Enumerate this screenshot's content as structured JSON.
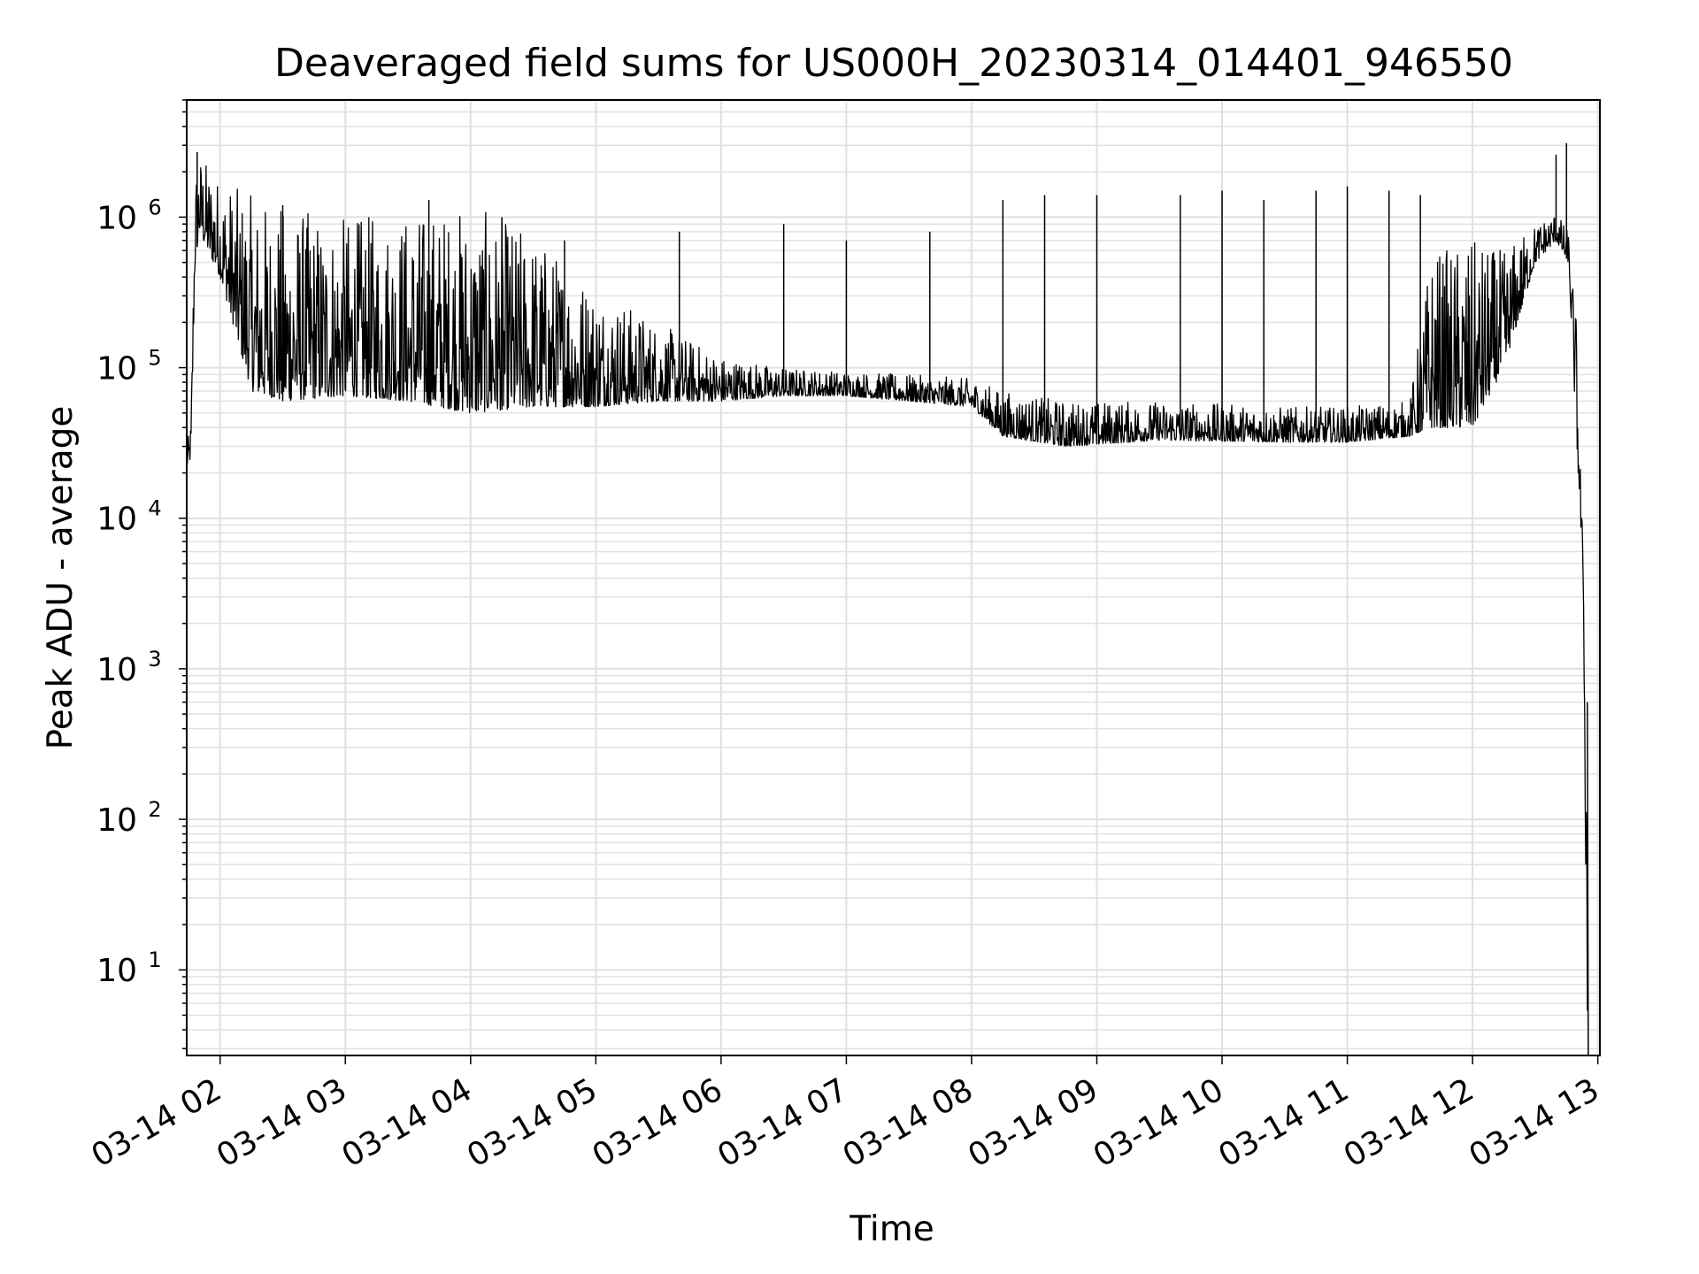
{
  "chart_data": {
    "type": "line",
    "title": "Deaveraged field sums for US000H_20230314_014401_946550",
    "xlabel": "Time",
    "ylabel": "Peak ADU - average",
    "y_scale": "log",
    "ylim": [
      2.7,
      6000000
    ],
    "xlim": [
      "2023-03-14 01:44",
      "2023-03-14 13:01"
    ],
    "grid": "on (major and minor, light gray)",
    "x_ticks": [
      "03-14 02",
      "03-14 03",
      "03-14 04",
      "03-14 05",
      "03-14 06",
      "03-14 07",
      "03-14 08",
      "03-14 09",
      "03-14 10",
      "03-14 11",
      "03-14 12",
      "03-14 13"
    ],
    "y_ticks": [
      {
        "base": "10",
        "exp": "1",
        "value": 10
      },
      {
        "base": "10",
        "exp": "2",
        "value": 100
      },
      {
        "base": "10",
        "exp": "3",
        "value": 1000
      },
      {
        "base": "10",
        "exp": "4",
        "value": 10000
      },
      {
        "base": "10",
        "exp": "5",
        "value": 100000
      },
      {
        "base": "10",
        "exp": "6",
        "value": 1000000
      }
    ],
    "line_color": "#000000",
    "grid_color": "#e0e0e0",
    "series": [
      {
        "envelope": [
          {
            "t": "01:44",
            "low": 22000,
            "high": 30000
          },
          {
            "t": "01:46",
            "low": 25000,
            "high": 45000
          },
          {
            "t": "01:48",
            "low": 500000,
            "high": 2200000
          },
          {
            "t": "01:50",
            "low": 800000,
            "high": 2700000
          },
          {
            "t": "02:00",
            "low": 400000,
            "high": 1800000
          },
          {
            "t": "02:15",
            "low": 70000,
            "high": 1400000
          },
          {
            "t": "02:30",
            "low": 60000,
            "high": 1200000
          },
          {
            "t": "03:00",
            "low": 65000,
            "high": 1000000
          },
          {
            "t": "03:30",
            "low": 60000,
            "high": 1100000
          },
          {
            "t": "04:00",
            "low": 50000,
            "high": 1200000
          },
          {
            "t": "04:30",
            "low": 55000,
            "high": 800000
          },
          {
            "t": "05:00",
            "low": 55000,
            "high": 350000
          },
          {
            "t": "05:30",
            "low": 60000,
            "high": 200000
          },
          {
            "t": "06:00",
            "low": 60000,
            "high": 120000
          },
          {
            "t": "06:30",
            "low": 65000,
            "high": 100000
          },
          {
            "t": "07:00",
            "low": 65000,
            "high": 95000
          },
          {
            "t": "07:30",
            "low": 60000,
            "high": 90000
          },
          {
            "t": "08:00",
            "low": 55000,
            "high": 85000
          },
          {
            "t": "08:15",
            "low": 35000,
            "high": 70000
          },
          {
            "t": "08:45",
            "low": 30000,
            "high": 60000
          },
          {
            "t": "09:30",
            "low": 33000,
            "high": 60000
          },
          {
            "t": "10:30",
            "low": 32000,
            "high": 55000
          },
          {
            "t": "11:00",
            "low": 32000,
            "high": 55000
          },
          {
            "t": "11:30",
            "low": 35000,
            "high": 60000
          },
          {
            "t": "11:40",
            "low": 40000,
            "high": 600000
          },
          {
            "t": "12:00",
            "low": 40000,
            "high": 700000
          },
          {
            "t": "12:15",
            "low": 100000,
            "high": 600000
          },
          {
            "t": "12:30",
            "low": 500000,
            "high": 900000
          },
          {
            "t": "12:40",
            "low": 700000,
            "high": 1100000
          },
          {
            "t": "12:46",
            "low": 500000,
            "high": 800000
          },
          {
            "t": "12:50",
            "low": 30000,
            "high": 200000
          },
          {
            "t": "12:53",
            "low": 4000,
            "high": 5000
          },
          {
            "t": "12:55",
            "low": 3,
            "high": 600
          }
        ],
        "spikes": [
          {
            "t": "01:49",
            "value": 2700000
          },
          {
            "t": "02:30",
            "value": 1200000
          },
          {
            "t": "03:40",
            "value": 1300000
          },
          {
            "t": "04:15",
            "value": 1000000
          },
          {
            "t": "04:45",
            "value": 700000
          },
          {
            "t": "05:40",
            "value": 800000
          },
          {
            "t": "06:30",
            "value": 900000
          },
          {
            "t": "07:00",
            "value": 700000
          },
          {
            "t": "07:40",
            "value": 800000
          },
          {
            "t": "08:15",
            "value": 1300000
          },
          {
            "t": "08:35",
            "value": 1400000
          },
          {
            "t": "09:00",
            "value": 1400000
          },
          {
            "t": "09:40",
            "value": 1400000
          },
          {
            "t": "10:00",
            "value": 1500000
          },
          {
            "t": "10:20",
            "value": 1300000
          },
          {
            "t": "10:45",
            "value": 1500000
          },
          {
            "t": "11:00",
            "value": 1600000
          },
          {
            "t": "11:20",
            "value": 1500000
          },
          {
            "t": "11:35",
            "value": 1400000
          },
          {
            "t": "12:40",
            "value": 2600000
          },
          {
            "t": "12:45",
            "value": 3100000
          }
        ]
      }
    ]
  }
}
